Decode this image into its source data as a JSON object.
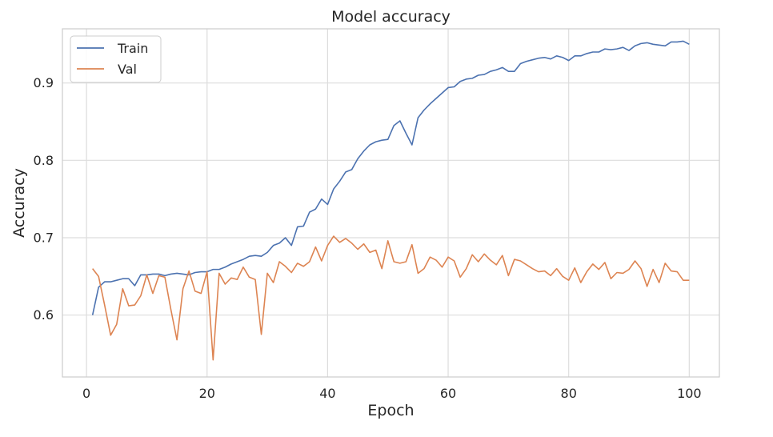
{
  "chart_data": {
    "type": "line",
    "title": "Model accuracy",
    "xlabel": "Epoch",
    "ylabel": "Accuracy",
    "xlim": [
      -4,
      105
    ],
    "ylim": [
      0.52,
      0.97
    ],
    "xticks": [
      0,
      20,
      40,
      60,
      80,
      100
    ],
    "yticks": [
      0.6,
      0.7,
      0.8,
      0.9
    ],
    "grid": true,
    "legend": "top-left",
    "x": [
      1,
      2,
      3,
      4,
      5,
      6,
      7,
      8,
      9,
      10,
      11,
      12,
      13,
      14,
      15,
      16,
      17,
      18,
      19,
      20,
      21,
      22,
      23,
      24,
      25,
      26,
      27,
      28,
      29,
      30,
      31,
      32,
      33,
      34,
      35,
      36,
      37,
      38,
      39,
      40,
      41,
      42,
      43,
      44,
      45,
      46,
      47,
      48,
      49,
      50,
      51,
      52,
      53,
      54,
      55,
      56,
      57,
      58,
      59,
      60,
      61,
      62,
      63,
      64,
      65,
      66,
      67,
      68,
      69,
      70,
      71,
      72,
      73,
      74,
      75,
      76,
      77,
      78,
      79,
      80,
      81,
      82,
      83,
      84,
      85,
      86,
      87,
      88,
      89,
      90,
      91,
      92,
      93,
      94,
      95,
      96,
      97,
      98,
      99,
      100
    ],
    "series": [
      {
        "name": "Train",
        "color": "#4c72b0",
        "values": [
          0.6,
          0.636,
          0.643,
          0.643,
          0.645,
          0.647,
          0.647,
          0.638,
          0.652,
          0.652,
          0.653,
          0.653,
          0.651,
          0.653,
          0.654,
          0.653,
          0.652,
          0.655,
          0.656,
          0.656,
          0.659,
          0.659,
          0.662,
          0.666,
          0.669,
          0.672,
          0.676,
          0.677,
          0.676,
          0.681,
          0.69,
          0.693,
          0.7,
          0.69,
          0.714,
          0.715,
          0.733,
          0.737,
          0.75,
          0.743,
          0.763,
          0.773,
          0.785,
          0.788,
          0.802,
          0.812,
          0.82,
          0.824,
          0.826,
          0.827,
          0.845,
          0.851,
          0.835,
          0.82,
          0.855,
          0.865,
          0.873,
          0.88,
          0.887,
          0.894,
          0.895,
          0.902,
          0.905,
          0.906,
          0.91,
          0.911,
          0.915,
          0.917,
          0.92,
          0.915,
          0.915,
          0.925,
          0.928,
          0.93,
          0.932,
          0.933,
          0.931,
          0.935,
          0.933,
          0.929,
          0.935,
          0.935,
          0.938,
          0.94,
          0.94,
          0.944,
          0.943,
          0.944,
          0.946,
          0.942,
          0.948,
          0.951,
          0.952,
          0.95,
          0.949,
          0.948,
          0.953,
          0.953,
          0.954,
          0.95
        ]
      },
      {
        "name": "Val",
        "color": "#dd8452",
        "values": [
          0.66,
          0.65,
          0.613,
          0.574,
          0.588,
          0.634,
          0.612,
          0.613,
          0.625,
          0.652,
          0.628,
          0.651,
          0.649,
          0.607,
          0.568,
          0.634,
          0.657,
          0.631,
          0.628,
          0.656,
          0.542,
          0.654,
          0.64,
          0.648,
          0.646,
          0.662,
          0.649,
          0.646,
          0.575,
          0.654,
          0.642,
          0.669,
          0.663,
          0.655,
          0.667,
          0.663,
          0.669,
          0.688,
          0.67,
          0.69,
          0.702,
          0.694,
          0.699,
          0.693,
          0.685,
          0.692,
          0.681,
          0.684,
          0.66,
          0.696,
          0.669,
          0.667,
          0.669,
          0.691,
          0.654,
          0.66,
          0.675,
          0.671,
          0.662,
          0.675,
          0.67,
          0.649,
          0.66,
          0.678,
          0.669,
          0.679,
          0.671,
          0.665,
          0.677,
          0.651,
          0.672,
          0.67,
          0.665,
          0.66,
          0.656,
          0.657,
          0.651,
          0.66,
          0.65,
          0.645,
          0.661,
          0.642,
          0.656,
          0.666,
          0.659,
          0.668,
          0.647,
          0.655,
          0.654,
          0.659,
          0.67,
          0.66,
          0.637,
          0.659,
          0.642,
          0.667,
          0.657,
          0.656,
          0.645,
          0.645
        ]
      }
    ]
  }
}
